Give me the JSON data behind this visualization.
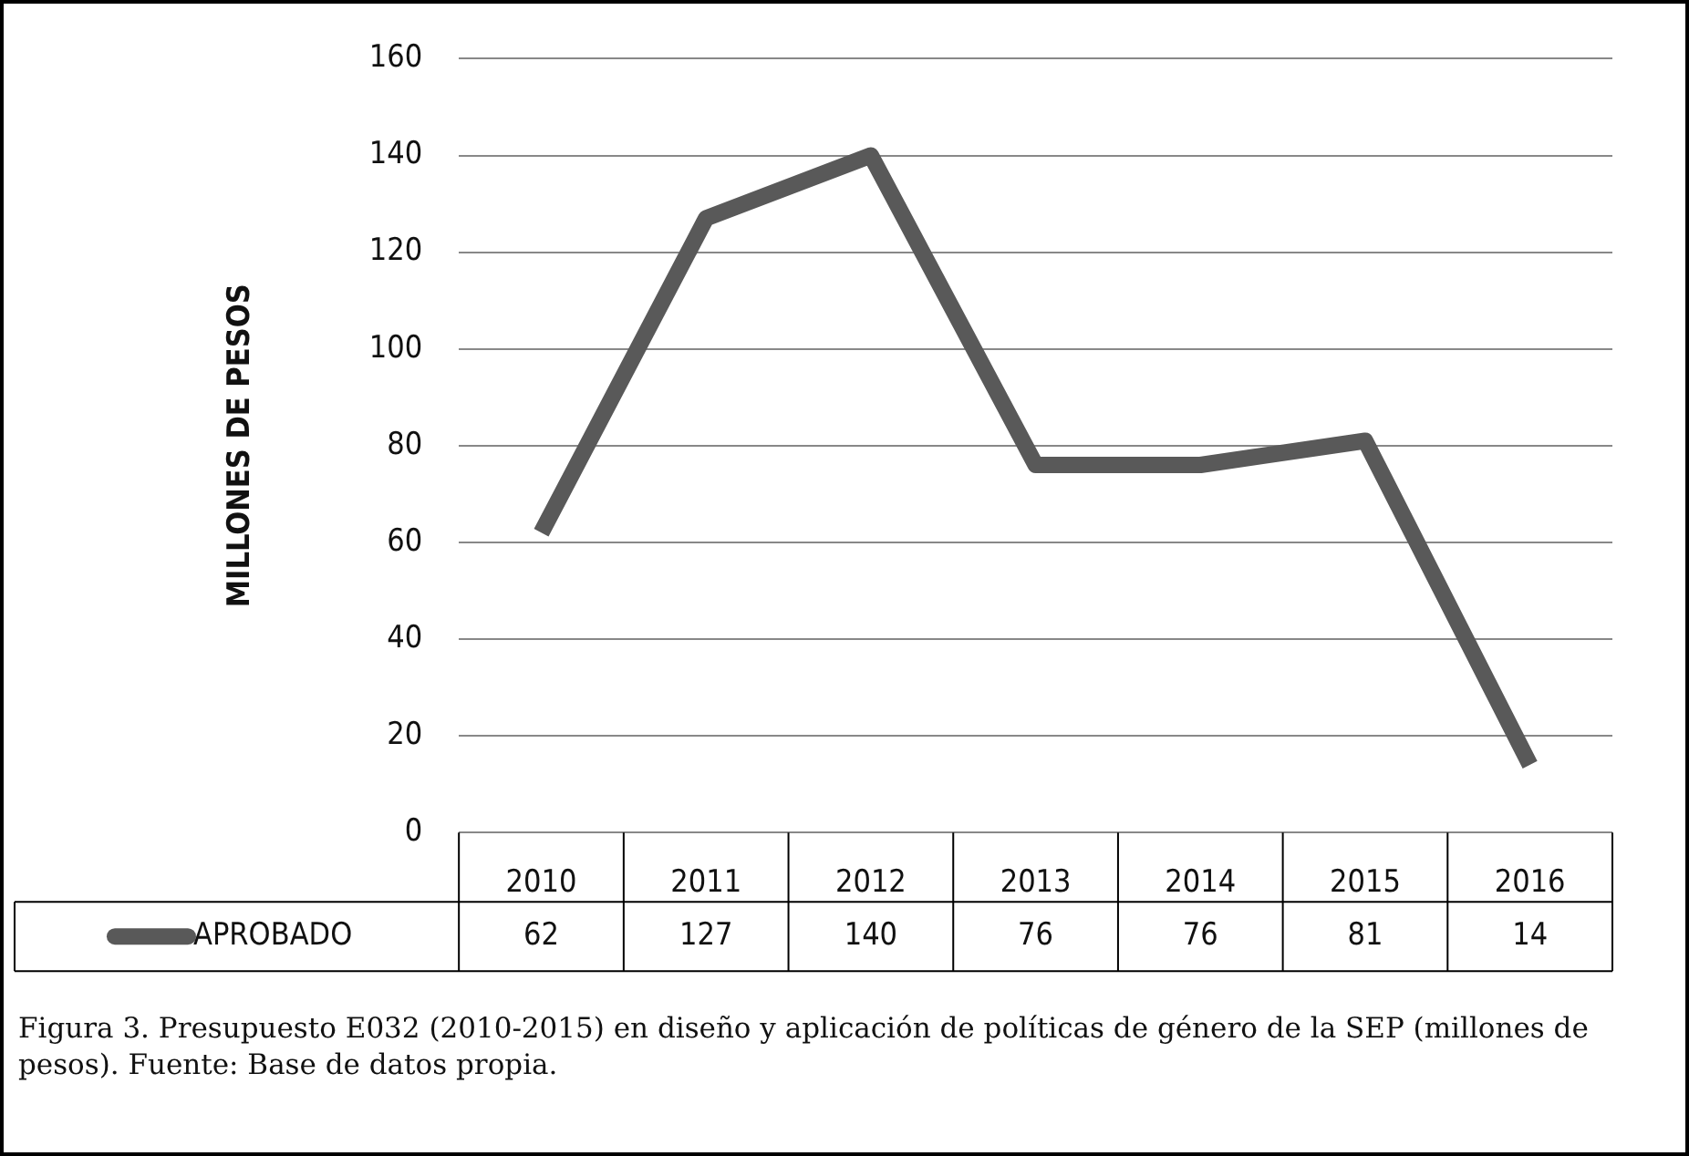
{
  "chart_data": {
    "type": "line",
    "ylabel": "MILLONES DE PESOS",
    "categories": [
      "2010",
      "2011",
      "2012",
      "2013",
      "2014",
      "2015",
      "2016"
    ],
    "series": [
      {
        "name": "APROBADO",
        "color": "#595959",
        "values": [
          62,
          127,
          140,
          76,
          76,
          81,
          14
        ]
      }
    ],
    "ylim": [
      0,
      160
    ],
    "yticks": [
      0,
      20,
      40,
      60,
      80,
      100,
      120,
      140,
      160
    ],
    "grid": "y",
    "legend": "bottom",
    "data_labels": true,
    "marker": "none",
    "line_style": "solid",
    "annotations": [
      "Figura 3. Presupuesto E032 (2010-2015) en diseño y aplicación de políticas de género de la SEP (millones de pesos). Fuente: Base de datos propia."
    ]
  }
}
